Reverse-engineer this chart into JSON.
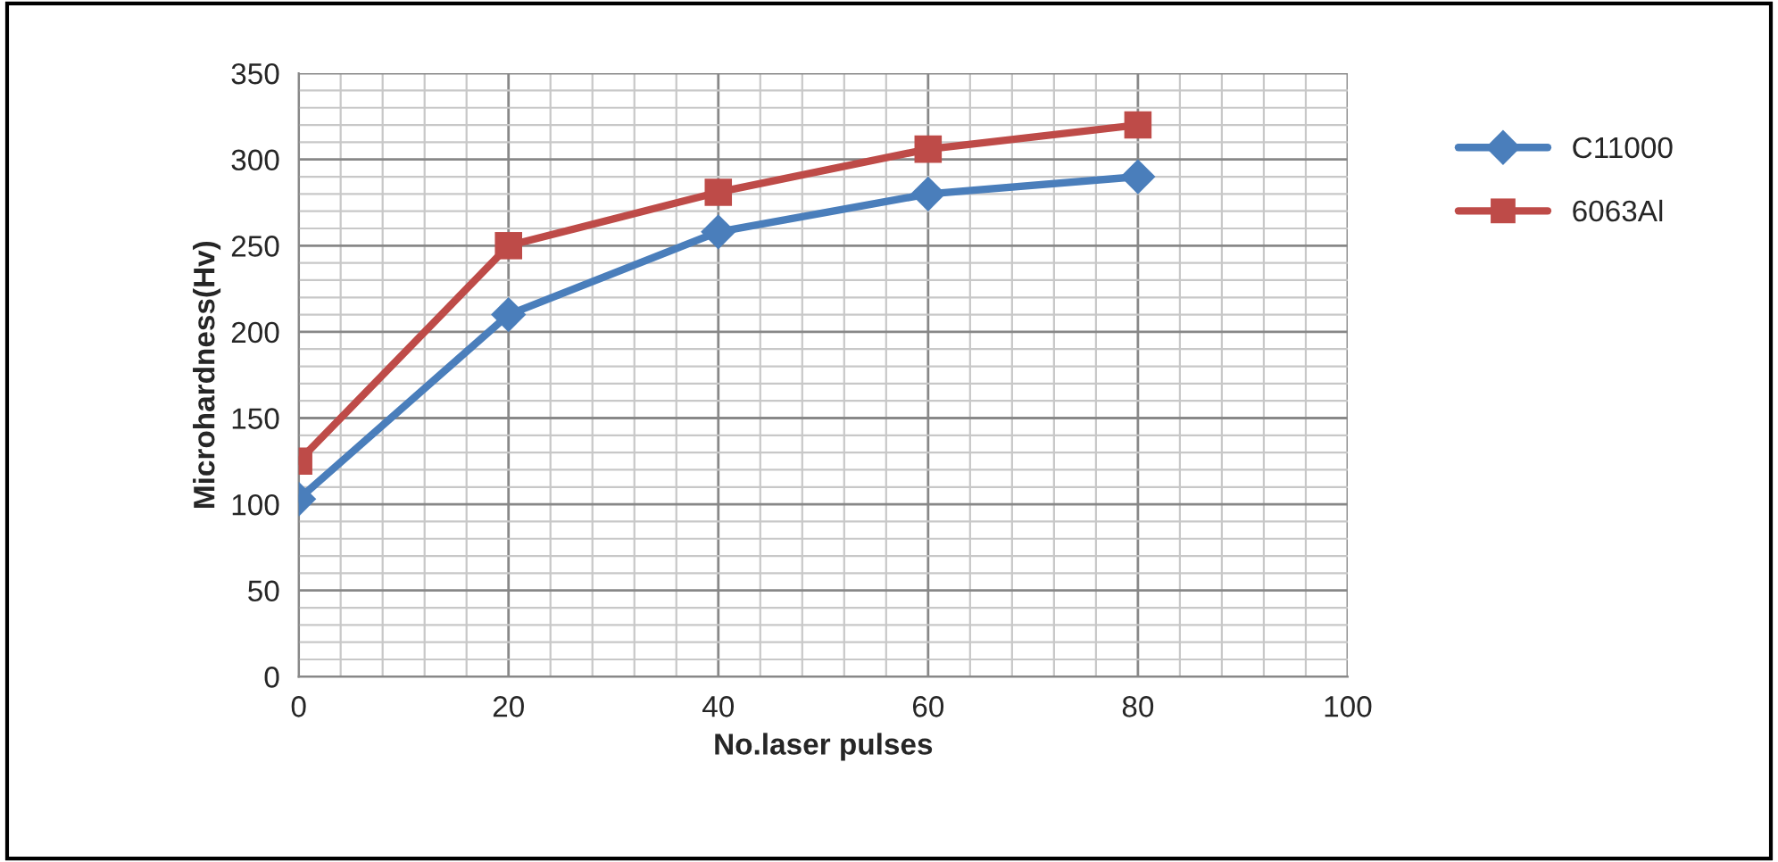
{
  "chart_data": {
    "type": "line",
    "xlabel": "No.laser pulses",
    "ylabel": "Microhardness(Hv)",
    "x": [
      0,
      20,
      40,
      60,
      80
    ],
    "series": [
      {
        "name": "C11000",
        "color": "#4a7ebb",
        "marker": "diamond",
        "values": [
          103,
          210,
          258,
          280,
          290
        ]
      },
      {
        "name": "6063Al",
        "color": "#be4b48",
        "marker": "square",
        "values": [
          125,
          250,
          281,
          306,
          320
        ]
      }
    ],
    "xlim": [
      0,
      100
    ],
    "xticks": [
      0,
      20,
      40,
      60,
      80,
      100
    ],
    "ylim": [
      0,
      350
    ],
    "yticks": [
      0,
      50,
      100,
      150,
      200,
      250,
      300,
      350
    ],
    "grid": true,
    "legend": "right",
    "line_style": "solid"
  }
}
